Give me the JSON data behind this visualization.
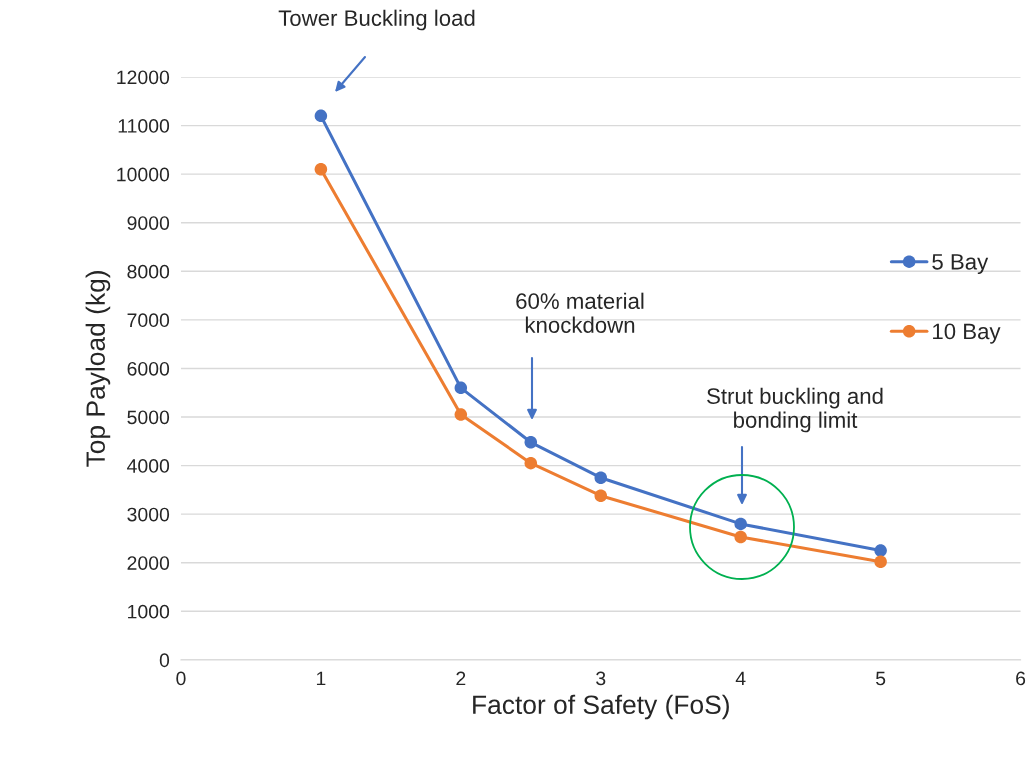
{
  "chart_data": {
    "type": "line",
    "xlabel": "Factor of Safety (FoS)",
    "ylabel": "Top Payload (kg)",
    "x": [
      1,
      2,
      2.5,
      3,
      4,
      5
    ],
    "series": [
      {
        "name": "5 Bay",
        "color": "#4472c4",
        "values": [
          11200,
          5600,
          4480,
          3750,
          2800,
          2250
        ]
      },
      {
        "name": "10 Bay",
        "color": "#ed7d31",
        "values": [
          10100,
          5050,
          4050,
          3380,
          2530,
          2020
        ]
      }
    ],
    "xlim": [
      0,
      6
    ],
    "xticks": [
      0,
      1,
      2,
      3,
      4,
      5,
      6
    ],
    "ylim": [
      0,
      12000
    ],
    "yticks": [
      0,
      1000,
      2000,
      3000,
      4000,
      5000,
      6000,
      7000,
      8000,
      9000,
      10000,
      11000,
      12000
    ],
    "grid": "y",
    "legend": "right",
    "marker": "circle",
    "line_style": "solid",
    "annotations": [
      "Tower Buckling load",
      "60% material\nknockdown",
      "Strut buckling and\nbonding limit"
    ]
  }
}
